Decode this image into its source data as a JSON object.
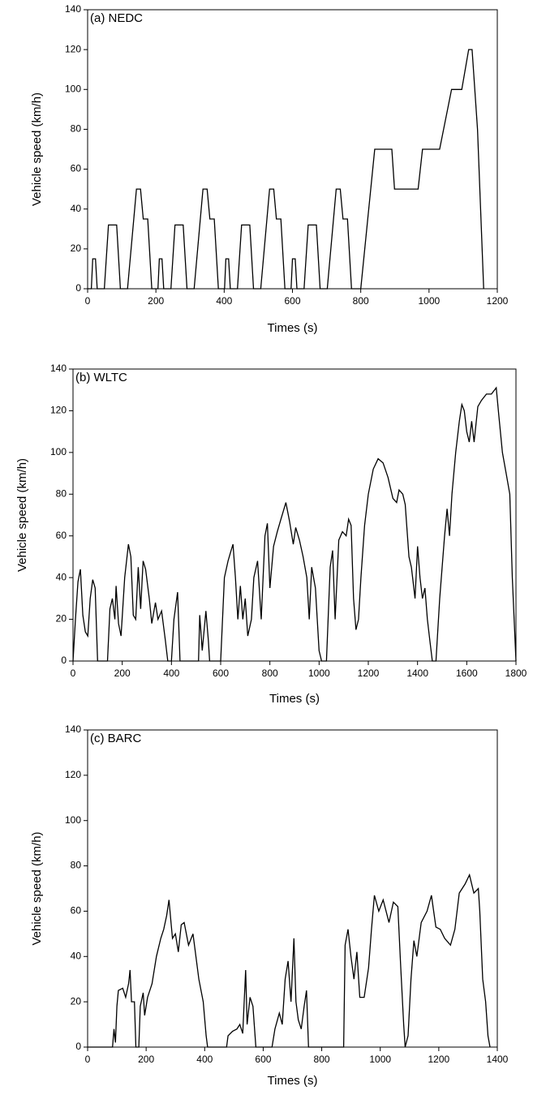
{
  "chart_data": [
    {
      "type": "line",
      "title": "(a) NEDC",
      "x_label": "Times (s)",
      "y_label": "Vehicle speed (km/h)",
      "xlim": [
        0,
        1200
      ],
      "xticks": [
        0,
        200,
        400,
        600,
        800,
        1000,
        1200
      ],
      "ylim": [
        0,
        140
      ],
      "yticks": [
        0,
        20,
        40,
        60,
        80,
        100,
        120,
        140
      ],
      "series": [
        {
          "color": "#000000",
          "x": [
            0,
            11,
            15,
            23,
            28,
            49,
            61,
            85,
            96,
            117,
            143,
            155,
            163,
            176,
            188,
            195,
            206,
            210,
            218,
            223,
            244,
            256,
            280,
            291,
            312,
            338,
            350,
            358,
            371,
            383,
            390,
            401,
            405,
            413,
            418,
            439,
            451,
            475,
            486,
            507,
            533,
            545,
            553,
            566,
            578,
            585,
            596,
            600,
            608,
            613,
            634,
            646,
            670,
            681,
            702,
            728,
            740,
            748,
            761,
            773,
            800,
            841,
            891,
            899,
            968,
            981,
            1031,
            1066,
            1096,
            1116,
            1126,
            1142,
            1160
          ],
          "values": [
            0,
            0,
            15,
            15,
            0,
            0,
            32,
            32,
            0,
            0,
            50,
            50,
            35,
            35,
            0,
            0,
            0,
            15,
            15,
            0,
            0,
            32,
            32,
            0,
            0,
            50,
            50,
            35,
            35,
            0,
            0,
            0,
            15,
            15,
            0,
            0,
            32,
            32,
            0,
            0,
            50,
            50,
            35,
            35,
            0,
            0,
            0,
            15,
            15,
            0,
            0,
            32,
            32,
            0,
            0,
            50,
            50,
            35,
            35,
            0,
            0,
            70,
            70,
            50,
            50,
            70,
            70,
            100,
            100,
            120,
            120,
            80,
            0
          ]
        }
      ]
    },
    {
      "type": "line",
      "title": "(b) WLTC",
      "x_label": "Times (s)",
      "y_label": "Vehicle speed (km/h)",
      "xlim": [
        0,
        1800
      ],
      "xticks": [
        0,
        200,
        400,
        600,
        800,
        1000,
        1200,
        1400,
        1600,
        1800
      ],
      "ylim": [
        0,
        140
      ],
      "yticks": [
        0,
        20,
        40,
        60,
        80,
        100,
        120,
        140
      ],
      "series": [
        {
          "color": "#000000",
          "x": [
            0,
            10,
            20,
            30,
            40,
            50,
            60,
            70,
            80,
            90,
            100,
            140,
            150,
            160,
            170,
            175,
            185,
            195,
            210,
            225,
            235,
            245,
            255,
            265,
            275,
            285,
            295,
            310,
            320,
            335,
            345,
            360,
            375,
            385,
            400,
            410,
            425,
            435,
            510,
            515,
            525,
            540,
            550,
            555,
            600,
            615,
            630,
            640,
            650,
            660,
            670,
            680,
            690,
            700,
            710,
            725,
            735,
            750,
            765,
            780,
            790,
            800,
            815,
            830,
            845,
            865,
            880,
            895,
            905,
            920,
            935,
            950,
            960,
            970,
            985,
            1000,
            1010,
            1030,
            1045,
            1055,
            1065,
            1080,
            1095,
            1110,
            1120,
            1130,
            1140,
            1150,
            1160,
            1170,
            1185,
            1200,
            1220,
            1240,
            1260,
            1280,
            1300,
            1315,
            1325,
            1340,
            1350,
            1365,
            1375,
            1390,
            1400,
            1410,
            1420,
            1430,
            1440,
            1450,
            1460,
            1475,
            1490,
            1510,
            1520,
            1530,
            1540,
            1555,
            1570,
            1580,
            1590,
            1600,
            1610,
            1620,
            1630,
            1645,
            1660,
            1680,
            1700,
            1720,
            1730,
            1745,
            1760,
            1775,
            1785,
            1800
          ],
          "values": [
            0,
            20,
            38,
            44,
            22,
            14,
            12,
            30,
            39,
            35,
            0,
            0,
            25,
            30,
            20,
            36,
            18,
            12,
            40,
            56,
            50,
            22,
            20,
            45,
            25,
            48,
            44,
            30,
            18,
            28,
            20,
            24,
            10,
            0,
            0,
            20,
            33,
            0,
            0,
            22,
            5,
            24,
            10,
            0,
            0,
            40,
            48,
            52,
            56,
            40,
            20,
            36,
            20,
            30,
            12,
            20,
            40,
            48,
            20,
            60,
            66,
            35,
            55,
            62,
            68,
            76,
            67,
            56,
            64,
            58,
            50,
            40,
            20,
            45,
            35,
            5,
            0,
            0,
            45,
            53,
            20,
            58,
            62,
            60,
            68,
            65,
            30,
            15,
            20,
            40,
            65,
            80,
            92,
            97,
            95,
            88,
            78,
            76,
            82,
            80,
            75,
            50,
            45,
            30,
            55,
            40,
            30,
            35,
            20,
            10,
            0,
            0,
            30,
            60,
            73,
            60,
            80,
            100,
            115,
            123,
            120,
            110,
            105,
            115,
            105,
            122,
            125,
            128,
            128,
            131,
            118,
            100,
            90,
            80,
            40,
            0
          ]
        }
      ]
    },
    {
      "type": "line",
      "title": "(c) BARC",
      "x_label": "Times (s)",
      "y_label": "Vehicle speed (km/h)",
      "xlim": [
        0,
        1400
      ],
      "xticks": [
        0,
        200,
        400,
        600,
        800,
        1000,
        1200,
        1400
      ],
      "ylim": [
        0,
        140
      ],
      "yticks": [
        0,
        20,
        40,
        60,
        80,
        100,
        120,
        140
      ],
      "series": [
        {
          "color": "#000000",
          "x": [
            0,
            85,
            90,
            95,
            100,
            105,
            120,
            130,
            140,
            145,
            150,
            160,
            165,
            175,
            180,
            190,
            195,
            205,
            220,
            235,
            250,
            260,
            270,
            278,
            285,
            290,
            300,
            310,
            320,
            330,
            345,
            360,
            370,
            380,
            395,
            405,
            410,
            475,
            480,
            495,
            510,
            520,
            530,
            540,
            545,
            555,
            565,
            575,
            630,
            640,
            655,
            665,
            675,
            685,
            695,
            705,
            712,
            720,
            730,
            740,
            748,
            755,
            875,
            880,
            890,
            900,
            910,
            920,
            930,
            945,
            960,
            970,
            980,
            995,
            1010,
            1030,
            1045,
            1060,
            1070,
            1080,
            1085,
            1095,
            1105,
            1115,
            1125,
            1140,
            1160,
            1175,
            1190,
            1205,
            1220,
            1240,
            1255,
            1270,
            1290,
            1305,
            1320,
            1335,
            1340,
            1350,
            1360,
            1368,
            1375
          ],
          "values": [
            0,
            0,
            8,
            2,
            18,
            25,
            26,
            22,
            28,
            34,
            20,
            20,
            0,
            0,
            18,
            24,
            14,
            22,
            28,
            40,
            48,
            52,
            58,
            65,
            55,
            48,
            50,
            42,
            54,
            55,
            45,
            50,
            40,
            30,
            20,
            5,
            0,
            0,
            5,
            7,
            8,
            10,
            6,
            34,
            10,
            22,
            18,
            0,
            0,
            8,
            15,
            10,
            30,
            38,
            20,
            48,
            20,
            12,
            8,
            18,
            25,
            0,
            0,
            45,
            52,
            40,
            30,
            42,
            22,
            22,
            35,
            52,
            67,
            60,
            65,
            55,
            64,
            62,
            35,
            10,
            0,
            5,
            30,
            47,
            40,
            55,
            60,
            67,
            53,
            52,
            48,
            45,
            52,
            68,
            72,
            76,
            68,
            70,
            60,
            30,
            20,
            5,
            0
          ]
        }
      ]
    }
  ]
}
